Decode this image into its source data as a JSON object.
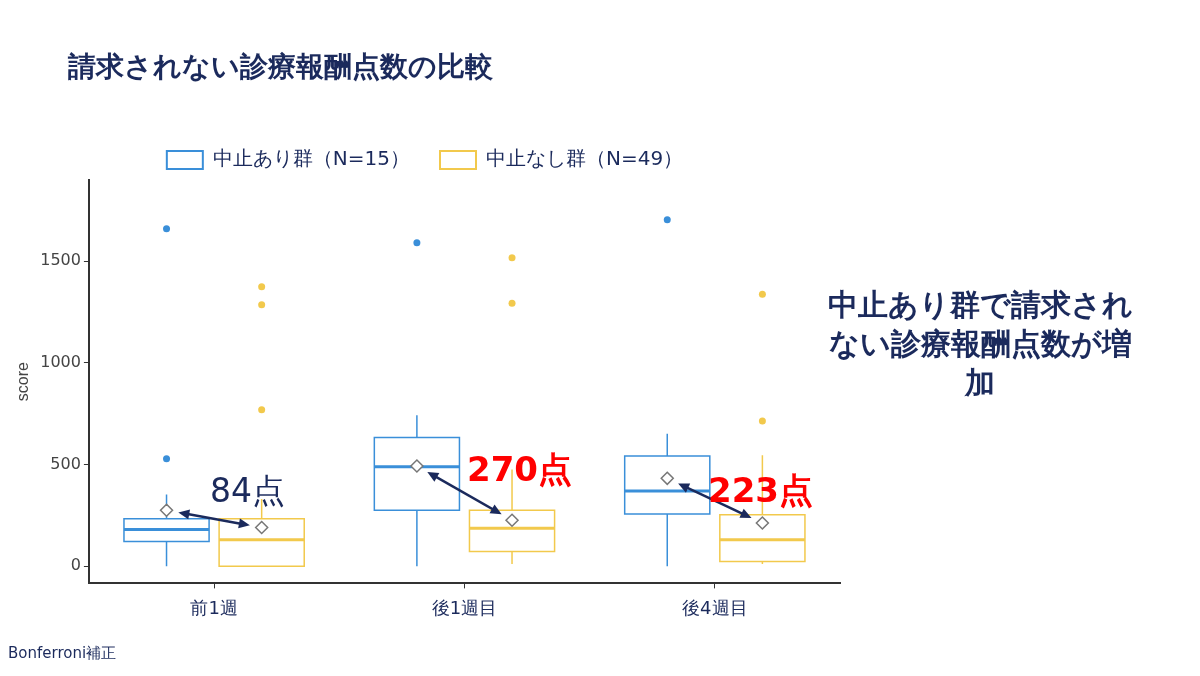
{
  "chart_data": {
    "type": "box",
    "title": "請求されない診療報酬点数の比較",
    "ylabel": "score",
    "categories": [
      "前1週",
      "後1週目",
      "後4週目"
    ],
    "series": [
      {
        "name": "中止あり群（N=15）",
        "color": "#3a8fd9",
        "boxes": [
          {
            "low": 0,
            "q1": 121,
            "median": 180,
            "q3": 233,
            "high": 353,
            "mean": 275,
            "outliers": [
              528,
              1660
            ]
          },
          {
            "low": 0,
            "q1": 275,
            "median": 489,
            "q3": 633,
            "high": 742,
            "mean": 493,
            "outliers": [
              1591
            ]
          },
          {
            "low": 0,
            "q1": 256,
            "median": 370,
            "q3": 542,
            "high": 651,
            "mean": 432,
            "outliers": [
              1704
            ]
          }
        ]
      },
      {
        "name": "中止なし群（N=49）",
        "color": "#f2c94c",
        "boxes": [
          {
            "low": 0,
            "q1": 0,
            "median": 130,
            "q3": 233,
            "high": 330,
            "mean": 190,
            "outliers": [
              770,
              1286,
              1375
            ]
          },
          {
            "low": 10,
            "q1": 72,
            "median": 186,
            "q3": 275,
            "high": 475,
            "mean": 226,
            "outliers": [
              1293,
              1517
            ]
          },
          {
            "low": 10,
            "q1": 23,
            "median": 130,
            "q3": 253,
            "high": 546,
            "mean": 212,
            "outliers": [
              714,
              1338
            ]
          }
        ]
      }
    ],
    "ylim": [
      -85,
      1900
    ],
    "yticks": [
      0,
      500,
      1000,
      1500
    ],
    "legend": "top",
    "annotations": [
      "84点",
      "270点",
      "223点",
      "中止あり群で請求されない診療報酬点数が増加",
      "Bonferroni補正"
    ]
  }
}
